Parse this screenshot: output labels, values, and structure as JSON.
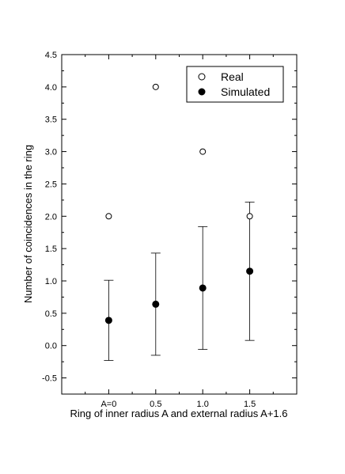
{
  "chart_data": {
    "type": "scatter",
    "xlabel": "Ring of inner radius A and external radius A+1.6",
    "ylabel": "Number of coincidences in the ring",
    "xlim": [
      -0.5,
      2.0
    ],
    "ylim": [
      -0.75,
      4.5
    ],
    "x_ticks": [
      0,
      0.5,
      1.0,
      1.5
    ],
    "x_tick_labels": [
      "A=0",
      "0.5",
      "1.0",
      "1.5"
    ],
    "y_ticks": [
      -0.5,
      0.0,
      0.5,
      1.0,
      1.5,
      2.0,
      2.5,
      3.0,
      3.5,
      4.0,
      4.5
    ],
    "y_tick_labels": [
      "-0.5",
      "0.0",
      "0.5",
      "1.0",
      "1.5",
      "2.0",
      "2.5",
      "3.0",
      "3.5",
      "4.0",
      "4.5"
    ],
    "grid": false,
    "legend_position": "top-right",
    "series": [
      {
        "name": "Real",
        "marker": "open-circle",
        "x": [
          0,
          0.5,
          1.0,
          1.5
        ],
        "y": [
          2.0,
          4.0,
          3.0,
          2.0
        ]
      },
      {
        "name": "Simulated",
        "marker": "filled-circle",
        "x": [
          0,
          0.5,
          1.0,
          1.5
        ],
        "y": [
          0.39,
          0.64,
          0.89,
          1.15
        ],
        "err_low": [
          -0.23,
          -0.15,
          -0.06,
          0.08
        ],
        "err_high": [
          1.01,
          1.43,
          1.84,
          2.22
        ]
      }
    ]
  }
}
